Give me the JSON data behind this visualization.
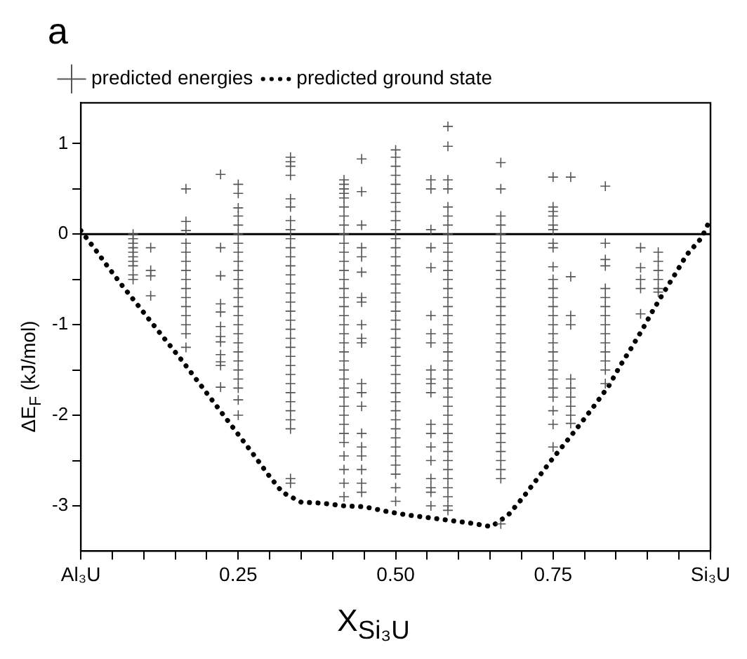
{
  "chart_data": {
    "type": "scatter",
    "title": "a",
    "xlabel": "X$_{Si₃U}$",
    "ylabel": "ΔE$_{F}$ (kJ/mol)",
    "xlim": [
      0,
      1
    ],
    "ylim": [
      -3.5,
      1.45
    ],
    "xticks": [
      {
        "value": 0,
        "label": "Al₃U"
      },
      {
        "value": 0.05,
        "label": null
      },
      {
        "value": 0.1,
        "label": null
      },
      {
        "value": 0.15,
        "label": null
      },
      {
        "value": 0.2,
        "label": null
      },
      0.25,
      {
        "value": 0.3,
        "label": null
      },
      {
        "value": 0.35,
        "label": null
      },
      {
        "value": 0.4,
        "label": null
      },
      {
        "value": 0.45,
        "label": null
      },
      {
        "value": 0.5,
        "label": "0.50"
      },
      {
        "value": 0.55,
        "label": null
      },
      {
        "value": 0.6,
        "label": null
      },
      {
        "value": 0.65,
        "label": null
      },
      {
        "value": 0.7,
        "label": null
      },
      0.75,
      {
        "value": 0.8,
        "label": null
      },
      {
        "value": 0.85,
        "label": null
      },
      {
        "value": 0.9,
        "label": null
      },
      {
        "value": 0.95,
        "label": null
      },
      {
        "value": 1,
        "label": "Si₃U"
      }
    ],
    "yticks": [
      -3,
      {
        "value": -2.5,
        "label": null
      },
      -2,
      {
        "value": -1.5,
        "label": null
      },
      -1,
      {
        "value": -0.5,
        "label": null
      },
      0,
      {
        "value": 0.5,
        "label": null
      },
      1
    ],
    "legend": "top left",
    "ref_lines": [
      {
        "axis": "y",
        "value": 0,
        "color": "#000000"
      }
    ],
    "series": [
      {
        "name": "predicted energies",
        "marker": "cross",
        "color": "#555555",
        "x": [
          0.083,
          0.083,
          0.083,
          0.083,
          0.083,
          0.083,
          0.083,
          0.083,
          0.083,
          0.083,
          0.111,
          0.111,
          0.111,
          0.111,
          0.167,
          0.167,
          0.167,
          0.167,
          0.167,
          0.167,
          0.167,
          0.167,
          0.167,
          0.167,
          0.167,
          0.167,
          0.167,
          0.167,
          0.167,
          0.222,
          0.222,
          0.222,
          0.222,
          0.222,
          0.222,
          0.222,
          0.222,
          0.222,
          0.222,
          0.222,
          0.222,
          0.25,
          0.25,
          0.25,
          0.25,
          0.25,
          0.25,
          0.25,
          0.25,
          0.25,
          0.25,
          0.25,
          0.25,
          0.25,
          0.25,
          0.25,
          0.25,
          0.25,
          0.25,
          0.25,
          0.25,
          0.25,
          0.25,
          0.25,
          0.25,
          0.25,
          0.333,
          0.333,
          0.333,
          0.333,
          0.333,
          0.333,
          0.333,
          0.333,
          0.333,
          0.333,
          0.333,
          0.333,
          0.333,
          0.333,
          0.333,
          0.333,
          0.333,
          0.333,
          0.333,
          0.333,
          0.333,
          0.333,
          0.333,
          0.333,
          0.333,
          0.333,
          0.333,
          0.333,
          0.333,
          0.333,
          0.333,
          0.333,
          0.418,
          0.418,
          0.418,
          0.418,
          0.418,
          0.418,
          0.418,
          0.418,
          0.418,
          0.418,
          0.418,
          0.418,
          0.418,
          0.418,
          0.418,
          0.418,
          0.418,
          0.418,
          0.418,
          0.418,
          0.418,
          0.418,
          0.418,
          0.418,
          0.418,
          0.418,
          0.418,
          0.418,
          0.418,
          0.418,
          0.418,
          0.418,
          0.418,
          0.418,
          0.418,
          0.418,
          0.446,
          0.446,
          0.446,
          0.446,
          0.446,
          0.446,
          0.446,
          0.446,
          0.446,
          0.446,
          0.446,
          0.446,
          0.446,
          0.446,
          0.446,
          0.446,
          0.446,
          0.446,
          0.446,
          0.446,
          0.5,
          0.5,
          0.5,
          0.5,
          0.5,
          0.5,
          0.5,
          0.5,
          0.5,
          0.5,
          0.5,
          0.5,
          0.5,
          0.5,
          0.5,
          0.5,
          0.5,
          0.5,
          0.5,
          0.5,
          0.5,
          0.5,
          0.5,
          0.5,
          0.5,
          0.5,
          0.5,
          0.5,
          0.5,
          0.5,
          0.5,
          0.5,
          0.5,
          0.5,
          0.5,
          0.5,
          0.5,
          0.5,
          0.5,
          0.556,
          0.556,
          0.556,
          0.556,
          0.556,
          0.556,
          0.556,
          0.556,
          0.556,
          0.556,
          0.556,
          0.556,
          0.556,
          0.556,
          0.556,
          0.556,
          0.556,
          0.556,
          0.556,
          0.556,
          0.583,
          0.583,
          0.583,
          0.583,
          0.583,
          0.583,
          0.583,
          0.583,
          0.583,
          0.583,
          0.583,
          0.583,
          0.583,
          0.583,
          0.583,
          0.583,
          0.583,
          0.583,
          0.583,
          0.583,
          0.583,
          0.583,
          0.583,
          0.583,
          0.583,
          0.583,
          0.583,
          0.583,
          0.583,
          0.583,
          0.583,
          0.583,
          0.583,
          0.583,
          0.583,
          0.583,
          0.583,
          0.583,
          0.583,
          0.667,
          0.667,
          0.667,
          0.667,
          0.667,
          0.667,
          0.667,
          0.667,
          0.667,
          0.667,
          0.667,
          0.667,
          0.667,
          0.667,
          0.667,
          0.667,
          0.667,
          0.667,
          0.667,
          0.667,
          0.667,
          0.667,
          0.667,
          0.667,
          0.667,
          0.667,
          0.667,
          0.667,
          0.667,
          0.667,
          0.667,
          0.667,
          0.667,
          0.75,
          0.75,
          0.75,
          0.75,
          0.75,
          0.75,
          0.75,
          0.75,
          0.75,
          0.75,
          0.75,
          0.75,
          0.75,
          0.75,
          0.75,
          0.75,
          0.75,
          0.75,
          0.75,
          0.75,
          0.75,
          0.75,
          0.75,
          0.75,
          0.75,
          0.75,
          0.778,
          0.778,
          0.778,
          0.778,
          0.778,
          0.778,
          0.778,
          0.778,
          0.778,
          0.778,
          0.833,
          0.833,
          0.833,
          0.833,
          0.833,
          0.833,
          0.833,
          0.833,
          0.833,
          0.833,
          0.833,
          0.833,
          0.833,
          0.833,
          0.833,
          0.889,
          0.889,
          0.889,
          0.889,
          0.889,
          0.917,
          0.917,
          0.917,
          0.917,
          0.917,
          0.917
        ],
        "values": [
          0,
          -0.05,
          -0.1,
          -0.15,
          -0.2,
          -0.25,
          -0.3,
          -0.35,
          -0.45,
          -0.5,
          -0.15,
          -0.4,
          -0.46,
          -0.68,
          0.5,
          0.14,
          0.04,
          -0.1,
          -0.2,
          -0.3,
          -0.4,
          -0.5,
          -0.6,
          -0.7,
          -0.8,
          -0.9,
          -1,
          -1.1,
          -1.25,
          0.66,
          -0.15,
          -0.46,
          -0.77,
          -0.86,
          -1.02,
          -1.13,
          -1.19,
          -1.33,
          -1.41,
          -1.45,
          -1.69,
          0.55,
          0.45,
          0.29,
          0.2,
          0.1,
          0,
          -0.1,
          -0.2,
          -0.3,
          -0.4,
          -0.5,
          -0.6,
          -0.7,
          -0.8,
          -0.9,
          -1,
          -1.1,
          -1.2,
          -1.3,
          -1.4,
          -1.5,
          -1.6,
          -1.7,
          -1.83,
          -2,
          0.85,
          0.8,
          0.75,
          0.65,
          0.39,
          0.3,
          0.15,
          0.05,
          -0.05,
          -0.15,
          -0.25,
          -0.35,
          -0.45,
          -0.55,
          -0.65,
          -0.75,
          -0.85,
          -0.95,
          -1.05,
          -1.15,
          -1.25,
          -1.35,
          -1.45,
          -1.55,
          -1.65,
          -1.75,
          -1.85,
          -1.95,
          -2.05,
          -2.15,
          -2.7,
          -2.75,
          0.6,
          0.55,
          0.5,
          0.45,
          0.4,
          0.3,
          0.2,
          0.1,
          0,
          -0.1,
          -0.2,
          -0.3,
          -0.4,
          -0.5,
          -0.6,
          -0.7,
          -0.8,
          -0.9,
          -1,
          -1.1,
          -1.2,
          -1.3,
          -1.4,
          -1.5,
          -1.6,
          -1.7,
          -1.8,
          -1.9,
          -2,
          -2.1,
          -2.2,
          -2.3,
          -2.45,
          -2.6,
          -2.75,
          -2.9,
          0.83,
          0.47,
          0.1,
          -0.15,
          -0.25,
          -0.42,
          -0.7,
          -0.75,
          -1,
          -1.15,
          -1.2,
          -1.65,
          -1.75,
          -1.9,
          -2.2,
          -2.35,
          -2.45,
          -2.6,
          -2.75,
          -2.85,
          0.93,
          0.85,
          0.75,
          0.65,
          0.55,
          0.45,
          0.35,
          0.25,
          0.15,
          0.05,
          -0.05,
          -0.15,
          -0.25,
          -0.35,
          -0.45,
          -0.55,
          -0.65,
          -0.75,
          -0.85,
          -0.95,
          -1.05,
          -1.15,
          -1.25,
          -1.35,
          -1.45,
          -1.55,
          -1.65,
          -1.75,
          -1.85,
          -1.95,
          -2.05,
          -2.15,
          -2.25,
          -2.35,
          -2.45,
          -2.55,
          -2.65,
          -2.8,
          -2.95,
          0.6,
          0.5,
          0.05,
          -0.15,
          -0.37,
          -0.9,
          -1.1,
          -1.2,
          -1.5,
          -1.6,
          -1.65,
          -1.75,
          -2.1,
          -2.2,
          -2.35,
          -2.5,
          -2.7,
          -2.8,
          -2.85,
          -3,
          1.19,
          0.97,
          0.6,
          0.5,
          0.3,
          0.2,
          0.1,
          0,
          -0.1,
          -0.2,
          -0.3,
          -0.4,
          -0.5,
          -0.6,
          -0.7,
          -0.8,
          -0.9,
          -1,
          -1.1,
          -1.2,
          -1.3,
          -1.4,
          -1.5,
          -1.6,
          -1.7,
          -1.8,
          -1.9,
          -2,
          -2.1,
          -2.2,
          -2.3,
          -2.4,
          -2.5,
          -2.6,
          -2.7,
          -2.8,
          -2.9,
          -3,
          -3.05,
          0.79,
          0.5,
          0.2,
          0.1,
          0,
          -0.1,
          -0.2,
          -0.3,
          -0.4,
          -0.5,
          -0.6,
          -0.7,
          -0.8,
          -0.9,
          -1,
          -1.1,
          -1.2,
          -1.3,
          -1.4,
          -1.5,
          -1.6,
          -1.7,
          -1.8,
          -1.9,
          -2,
          -2.1,
          -2.2,
          -2.3,
          -2.4,
          -2.5,
          -2.6,
          -2.7,
          -3.2,
          0.63,
          0.3,
          0.25,
          0.2,
          0.1,
          0.05,
          -0.1,
          -0.15,
          -0.36,
          -0.5,
          -0.6,
          -0.7,
          -0.8,
          -0.9,
          -1,
          -1.1,
          -1.2,
          -1.3,
          -1.4,
          -1.5,
          -1.6,
          -1.7,
          -1.8,
          -1.95,
          -2.1,
          -2.35,
          0.63,
          -0.47,
          -0.9,
          -1,
          -1.6,
          -1.7,
          -1.8,
          -1.9,
          -2,
          -2.09,
          0.53,
          -0.1,
          -0.28,
          -0.35,
          -0.6,
          -0.7,
          -0.8,
          -0.9,
          -1,
          -1.1,
          -1.2,
          -1.3,
          -1.4,
          -1.5,
          -1.65,
          -0.15,
          -0.37,
          -0.5,
          -0.6,
          -0.88,
          -0.2,
          -0.3,
          -0.4,
          -0.5,
          -0.6,
          -0.64
        ]
      },
      {
        "name": "predicted ground state",
        "type": "line",
        "marker": "none",
        "line_style": "dotted",
        "color": "#000000",
        "x": [
          0,
          0.023,
          0.044,
          0.066,
          0.089,
          0.114,
          0.137,
          0.16,
          0.183,
          0.206,
          0.229,
          0.252,
          0.275,
          0.297,
          0.32,
          0.35,
          0.382,
          0.417,
          0.45,
          0.484,
          0.517,
          0.551,
          0.585,
          0.618,
          0.652,
          0.679,
          0.702,
          0.725,
          0.748,
          0.77,
          0.794,
          0.817,
          0.839,
          0.856,
          0.874,
          0.892,
          0.908,
          0.926,
          0.944,
          0.962,
          0.986,
          1
        ],
        "values": [
          0.04,
          -0.17,
          -0.37,
          -0.57,
          -0.77,
          -0.99,
          -1.19,
          -1.39,
          -1.6,
          -1.81,
          -2.02,
          -2.23,
          -2.44,
          -2.65,
          -2.85,
          -2.96,
          -2.97,
          -3,
          -3.01,
          -3.06,
          -3.1,
          -3.13,
          -3.16,
          -3.19,
          -3.23,
          -3.1,
          -2.91,
          -2.7,
          -2.49,
          -2.3,
          -2.09,
          -1.88,
          -1.67,
          -1.46,
          -1.26,
          -1.05,
          -0.85,
          -0.64,
          -0.44,
          -0.23,
          -0.04,
          0.17
        ]
      }
    ]
  }
}
